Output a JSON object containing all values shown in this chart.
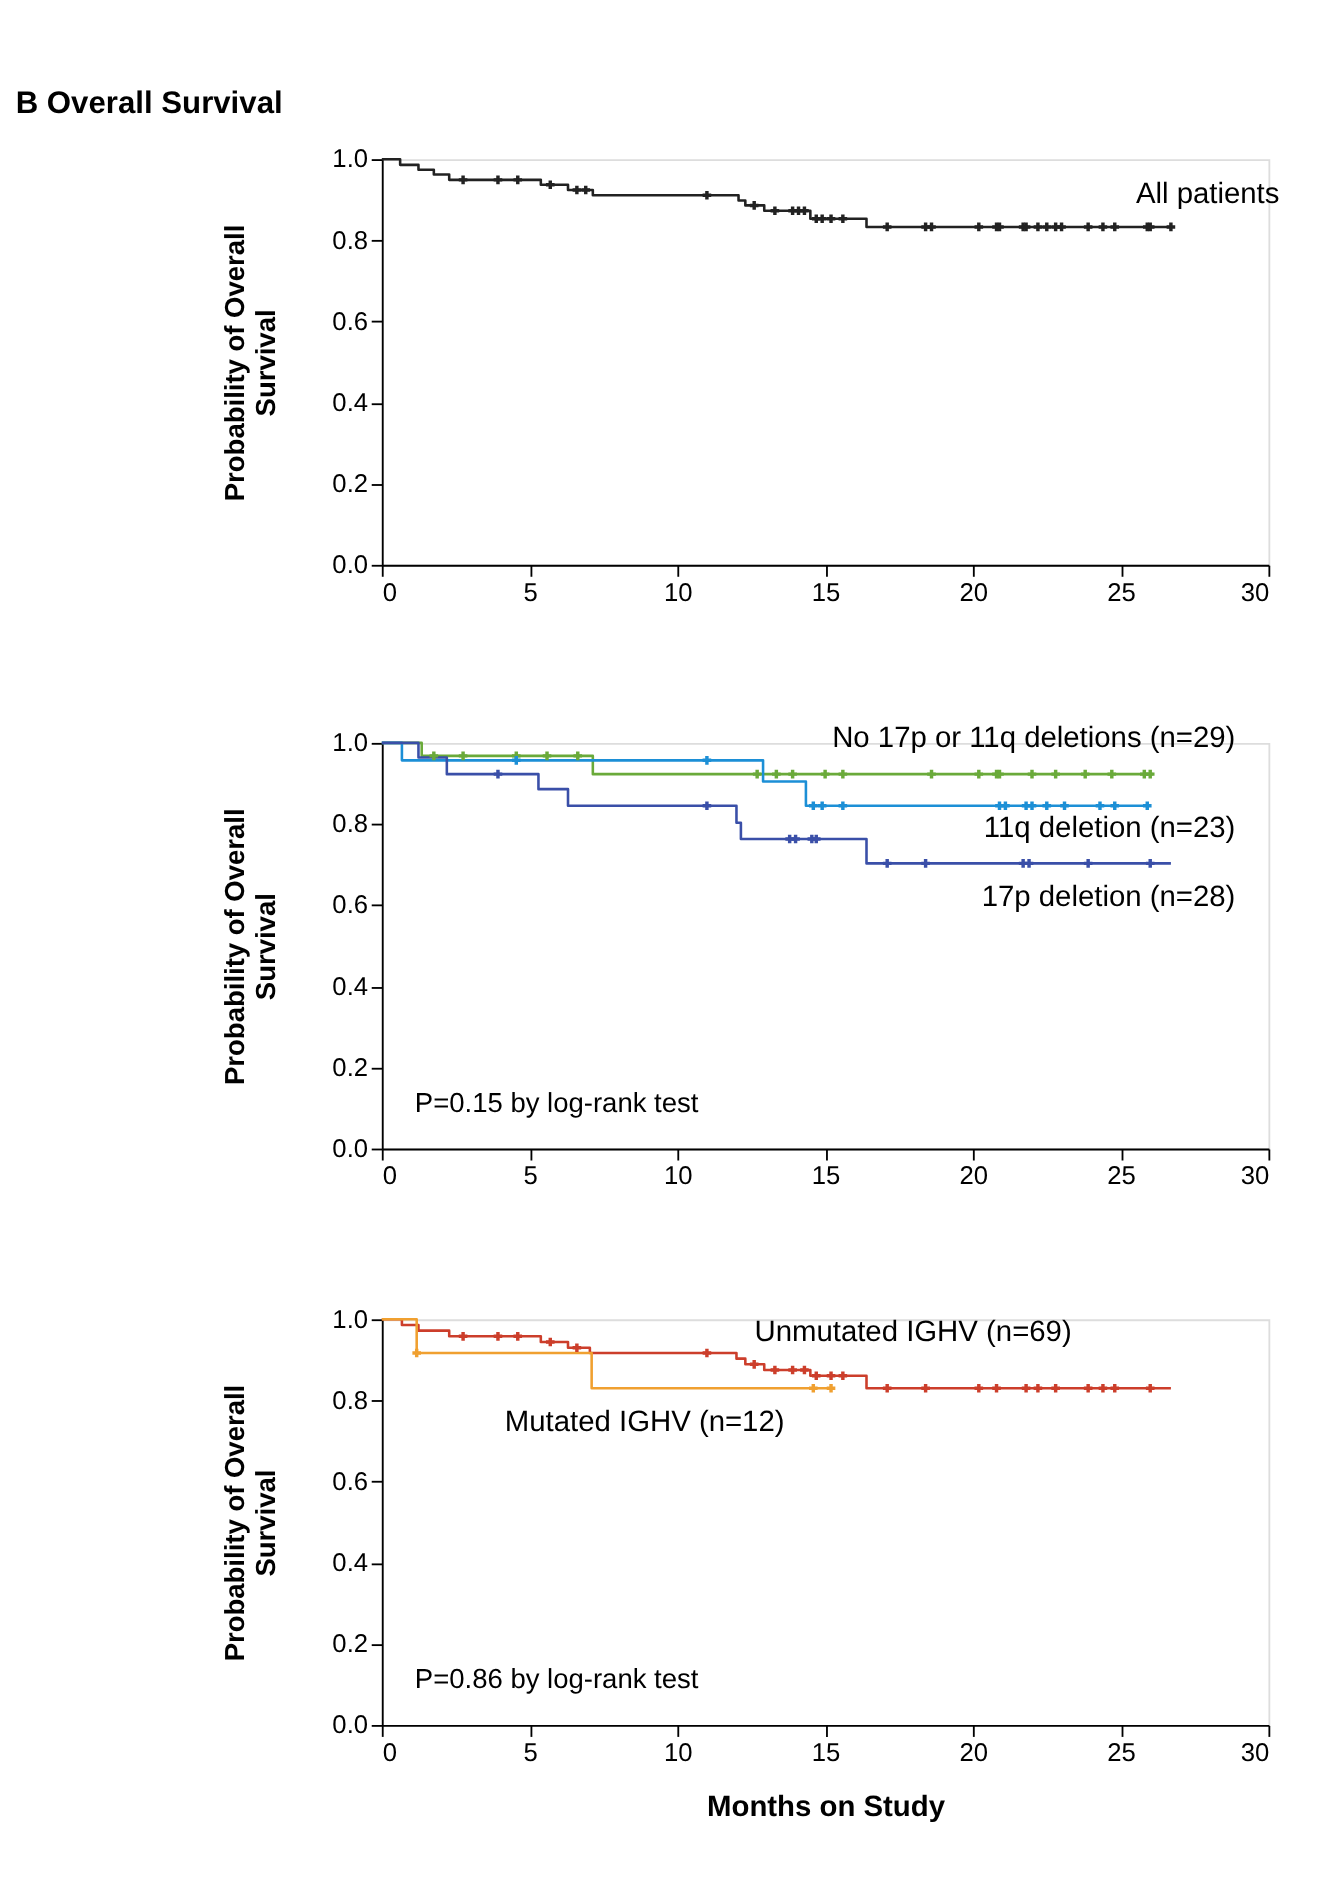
{
  "chart_data": [
    {
      "type": "step",
      "title": "B  Overall Survival",
      "ylabel": "Probability of Overall Survival",
      "xlim": [
        0,
        30
      ],
      "xticks": [
        0,
        5,
        10,
        15,
        20,
        25,
        30
      ],
      "ylim": [
        0,
        1
      ],
      "yticks": [
        {
          "value": 0,
          "label": "0.0"
        },
        {
          "value": 0.2,
          "label": "0.2"
        },
        {
          "value": 0.4,
          "label": "0.4"
        },
        {
          "value": 0.6,
          "label": "0.6"
        },
        {
          "value": 0.8,
          "label": "0.8"
        },
        {
          "value": 1,
          "label": "1.0"
        }
      ],
      "grid": false,
      "legend": "top right",
      "series": [
        {
          "name": "All patients",
          "color": "#222222",
          "x": [
            0,
            0.62,
            1.24,
            1.76,
            2.28,
            5.38,
            6.3,
            7.14,
            12.07,
            12.3,
            12.94,
            14.5,
            16.4,
            26.7
          ],
          "values": [
            1,
            0.986,
            0.974,
            0.962,
            0.949,
            0.937,
            0.924,
            0.911,
            0.898,
            0.886,
            0.873,
            0.853,
            0.833,
            0.833
          ]
        },
        {
          "type": "scatter",
          "marker": "cross",
          "color": "#222222",
          "x": [
            2.75,
            3.93,
            4.6,
            5.7,
            6.6,
            6.9,
            11.0,
            12.6,
            13.3,
            13.9,
            14.1,
            14.3,
            14.7,
            14.9,
            15.2,
            15.6,
            17.1,
            18.4,
            18.6,
            20.2,
            20.8,
            20.9,
            21.7,
            21.8,
            22.2,
            22.5,
            22.8,
            23.0,
            23.9,
            24.4,
            24.8,
            25.9,
            26.0,
            26.7
          ],
          "values": [
            0.949,
            0.949,
            0.949,
            0.937,
            0.924,
            0.924,
            0.911,
            0.886,
            0.873,
            0.873,
            0.873,
            0.873,
            0.853,
            0.853,
            0.853,
            0.853,
            0.833,
            0.833,
            0.833,
            0.833,
            0.833,
            0.833,
            0.833,
            0.833,
            0.833,
            0.833,
            0.833,
            0.833,
            0.833,
            0.833,
            0.833,
            0.833,
            0.833,
            0.833
          ]
        }
      ]
    },
    {
      "type": "step",
      "ylabel": "Probability of Overall Survival",
      "xlim": [
        0,
        30
      ],
      "xticks": [
        0,
        5,
        10,
        15,
        20,
        25,
        30
      ],
      "ylim": [
        0,
        1
      ],
      "yticks": [
        {
          "value": 0,
          "label": "0.0"
        },
        {
          "value": 0.2,
          "label": "0.2"
        },
        {
          "value": 0.4,
          "label": "0.4"
        },
        {
          "value": 0.6,
          "label": "0.6"
        },
        {
          "value": 0.8,
          "label": "0.8"
        },
        {
          "value": 1,
          "label": "1.0"
        }
      ],
      "grid": false,
      "legend": "right",
      "annotations": [
        "P=0.15 by log-rank test"
      ],
      "series": [
        {
          "name": "No 17p or 11q deletions (n=29)",
          "color": "#6aaa3a",
          "x": [
            0,
            1.35,
            7.14,
            26.1
          ],
          "values": [
            1,
            0.968,
            0.923,
            0.923
          ]
        },
        {
          "name": "11q deletion (n=23)",
          "color": "#1c8fd6",
          "x": [
            0,
            0.68,
            12.9,
            14.35,
            25.9
          ],
          "values": [
            1,
            0.957,
            0.905,
            0.845,
            0.845
          ]
        },
        {
          "name": "17p deletion (n=28)",
          "color": "#3a4fa8",
          "x": [
            0,
            1.24,
            2.2,
            5.3,
            6.3,
            12.0,
            12.15,
            16.4,
            26.7
          ],
          "values": [
            1,
            0.964,
            0.923,
            0.886,
            0.845,
            0.803,
            0.763,
            0.703,
            0.703
          ]
        },
        {
          "type": "scatter",
          "marker": "cross",
          "color": "#6aaa3a",
          "x": [
            1.76,
            2.75,
            4.55,
            5.59,
            6.63,
            12.7,
            13.35,
            13.9,
            15.0,
            15.6,
            18.6,
            20.2,
            20.8,
            20.9,
            22.0,
            22.8,
            23.8,
            24.7,
            25.8,
            26.0
          ],
          "values": [
            0.968,
            0.968,
            0.968,
            0.968,
            0.968,
            0.923,
            0.923,
            0.923,
            0.923,
            0.923,
            0.923,
            0.923,
            0.923,
            0.923,
            0.923,
            0.923,
            0.923,
            0.923,
            0.923,
            0.923
          ]
        },
        {
          "type": "scatter",
          "marker": "cross",
          "color": "#1c8fd6",
          "x": [
            4.55,
            11.0,
            14.6,
            14.9,
            15.6,
            20.9,
            21.1,
            21.8,
            22.0,
            22.5,
            23.1,
            24.3,
            24.8,
            25.9
          ],
          "values": [
            0.957,
            0.957,
            0.845,
            0.845,
            0.845,
            0.845,
            0.845,
            0.845,
            0.845,
            0.845,
            0.845,
            0.845,
            0.845,
            0.845
          ]
        },
        {
          "type": "scatter",
          "marker": "cross",
          "color": "#3a4fa8",
          "x": [
            3.93,
            11.0,
            13.8,
            14.0,
            14.55,
            14.7,
            17.1,
            18.4,
            21.7,
            21.9,
            23.9,
            26.0
          ],
          "values": [
            0.923,
            0.845,
            0.763,
            0.763,
            0.763,
            0.763,
            0.703,
            0.703,
            0.703,
            0.703,
            0.703,
            0.703
          ]
        }
      ]
    },
    {
      "type": "step",
      "ylabel": "Probability of Overall Survival",
      "xlabel": "Months on Study",
      "xlim": [
        0,
        30
      ],
      "xticks": [
        0,
        5,
        10,
        15,
        20,
        25,
        30
      ],
      "ylim": [
        0,
        1
      ],
      "yticks": [
        {
          "value": 0,
          "label": "0.0"
        },
        {
          "value": 0.2,
          "label": "0.2"
        },
        {
          "value": 0.4,
          "label": "0.4"
        },
        {
          "value": 0.6,
          "label": "0.6"
        },
        {
          "value": 0.8,
          "label": "0.8"
        },
        {
          "value": 1,
          "label": "1.0"
        }
      ],
      "grid": false,
      "legend": "top",
      "annotations": [
        "P=0.86 by log-rank test"
      ],
      "series": [
        {
          "name": "Unmutated IGHV (n=69)",
          "color": "#cc3e2b",
          "x": [
            0,
            0.68,
            1.24,
            2.28,
            5.38,
            6.3,
            7.04,
            12.0,
            12.3,
            12.94,
            14.5,
            16.4,
            26.7
          ],
          "values": [
            1,
            0.986,
            0.972,
            0.958,
            0.944,
            0.93,
            0.917,
            0.903,
            0.889,
            0.875,
            0.861,
            0.83,
            0.83
          ]
        },
        {
          "name": "Mutated IGHV (n=12)",
          "color": "#f0a030",
          "x": [
            0,
            1.18,
            7.1,
            15.2
          ],
          "values": [
            1,
            0.917,
            0.83,
            0.83
          ]
        },
        {
          "type": "scatter",
          "marker": "cross",
          "color": "#cc3e2b",
          "x": [
            2.75,
            3.93,
            4.6,
            5.7,
            6.6,
            11.0,
            12.6,
            13.3,
            13.9,
            14.3,
            14.7,
            15.2,
            15.6,
            17.1,
            18.4,
            20.2,
            20.8,
            21.8,
            22.2,
            22.8,
            23.9,
            24.4,
            24.8,
            26.0
          ],
          "values": [
            0.958,
            0.958,
            0.958,
            0.944,
            0.93,
            0.917,
            0.889,
            0.875,
            0.875,
            0.875,
            0.861,
            0.861,
            0.861,
            0.83,
            0.83,
            0.83,
            0.83,
            0.83,
            0.83,
            0.83,
            0.83,
            0.83,
            0.83,
            0.83
          ]
        },
        {
          "type": "scatter",
          "marker": "cross",
          "color": "#f0a030",
          "x": [
            1.18,
            14.6,
            15.2
          ],
          "values": [
            0.917,
            0.83,
            0.83
          ]
        }
      ]
    }
  ]
}
